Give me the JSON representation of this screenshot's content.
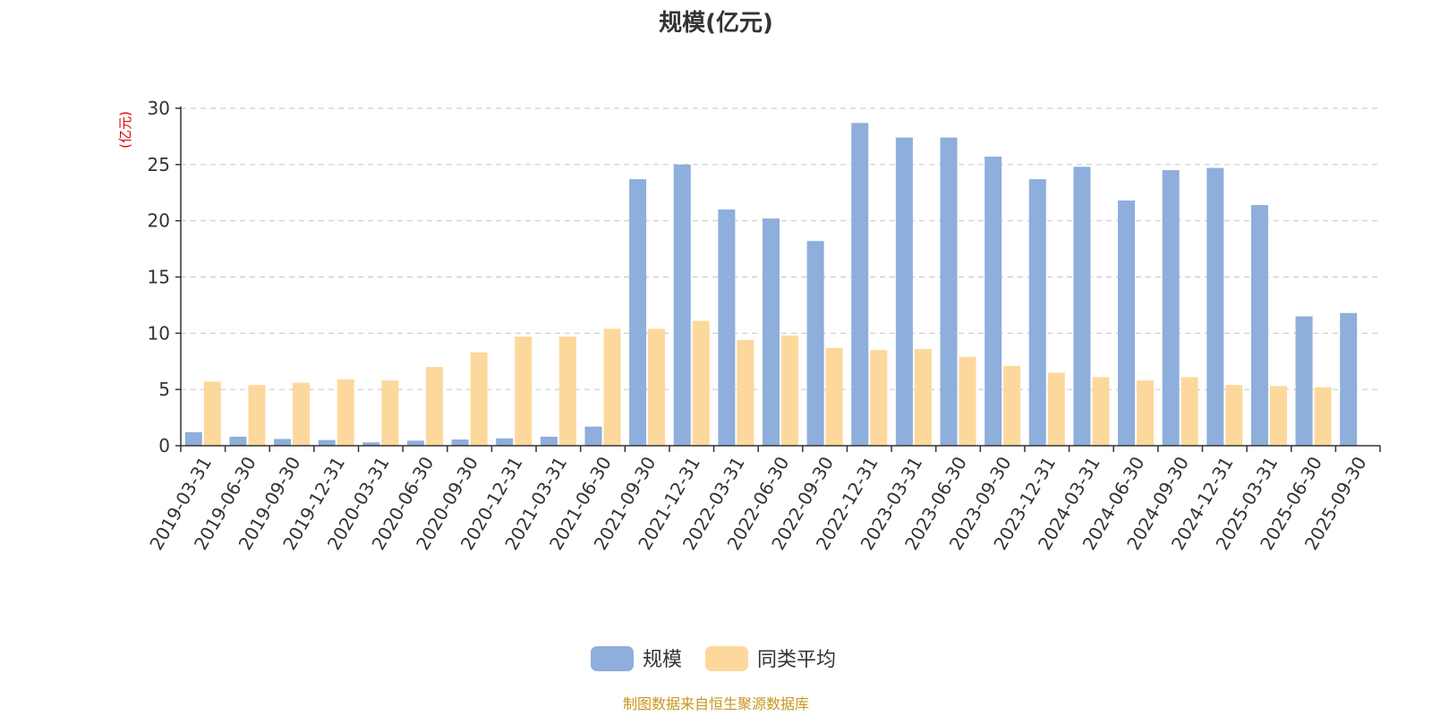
{
  "chart_data": {
    "type": "bar",
    "title": "规模(亿元)",
    "ylabel": "(亿元)",
    "xlabel": "",
    "ylim": [
      0,
      30
    ],
    "yticks": [
      0,
      5,
      10,
      15,
      20,
      25,
      30
    ],
    "grid": true,
    "legend_position": "bottom",
    "categories": [
      "2019-03-31",
      "2019-06-30",
      "2019-09-30",
      "2019-12-31",
      "2020-03-31",
      "2020-06-30",
      "2020-09-30",
      "2020-12-31",
      "2021-03-31",
      "2021-06-30",
      "2021-09-30",
      "2021-12-31",
      "2022-03-31",
      "2022-06-30",
      "2022-09-30",
      "2022-12-31",
      "2023-03-31",
      "2023-06-30",
      "2023-09-30",
      "2023-12-31",
      "2024-03-31",
      "2024-06-30",
      "2024-09-30",
      "2024-12-31",
      "2025-03-31",
      "2025-06-30",
      "2025-09-30"
    ],
    "series": [
      {
        "name": "规模",
        "color": "#8eaedb",
        "values": [
          1.2,
          0.8,
          0.6,
          0.5,
          0.3,
          0.45,
          0.55,
          0.65,
          0.8,
          1.7,
          23.7,
          25.0,
          21.0,
          20.2,
          18.2,
          28.7,
          27.4,
          27.4,
          25.7,
          23.7,
          24.8,
          21.8,
          24.5,
          24.7,
          21.4,
          11.5,
          11.8
        ]
      },
      {
        "name": "同类平均",
        "color": "#fdd89c",
        "values": [
          5.7,
          5.4,
          5.6,
          5.9,
          5.8,
          7.0,
          8.3,
          9.7,
          9.7,
          10.4,
          10.4,
          11.1,
          9.4,
          9.8,
          8.7,
          8.5,
          8.6,
          7.9,
          7.1,
          6.5,
          6.1,
          5.8,
          6.1,
          5.4,
          5.3,
          5.2,
          null
        ]
      }
    ]
  },
  "footer": {
    "source": "制图数据来自恒生聚源数据库"
  }
}
